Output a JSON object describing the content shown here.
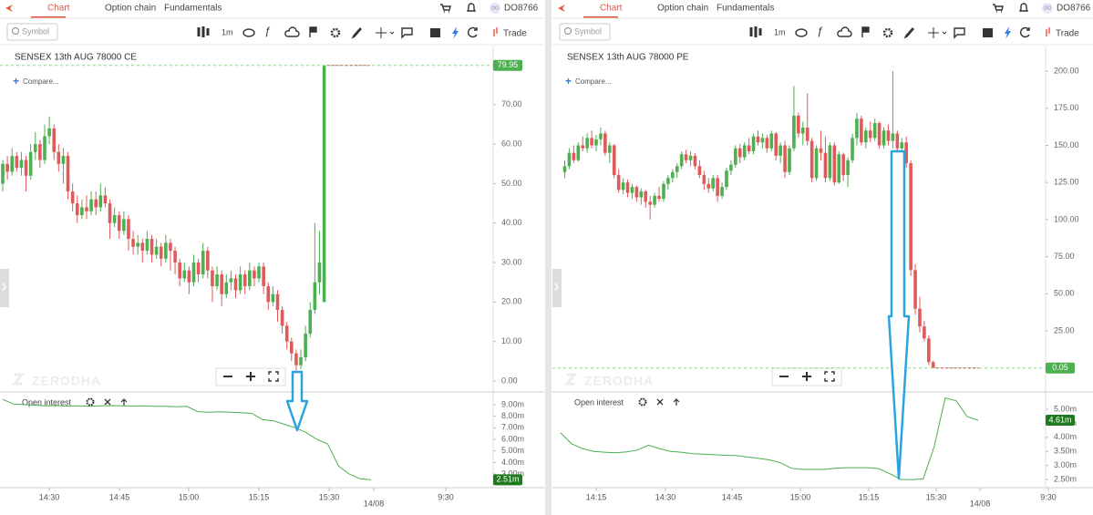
{
  "panels": [
    {
      "tabs": [
        "Chart",
        "Option chain",
        "Fundamentals"
      ],
      "user_initials": "DO",
      "user": "DO8766",
      "search_placeholder": "Symbol",
      "interval": "1m",
      "trade": "Trade",
      "title": "SENSEX 13th AUG 78000 CE",
      "compare": "Compare...",
      "watermark": "ZERODHA",
      "chart_data": {
        "type": "candlestick",
        "up_color": "#4caf50",
        "down_color": "#e05a5a",
        "candles": [
          [
            50,
            56,
            48,
            55
          ],
          [
            55,
            57,
            51,
            53
          ],
          [
            53,
            59,
            52,
            57
          ],
          [
            57,
            58,
            53,
            54
          ],
          [
            54,
            58,
            52,
            56
          ],
          [
            56,
            57,
            48,
            52
          ],
          [
            52,
            60,
            51,
            58
          ],
          [
            58,
            63,
            56,
            60
          ],
          [
            60,
            61,
            54,
            56
          ],
          [
            56,
            65,
            55,
            62
          ],
          [
            62,
            67,
            60,
            64
          ],
          [
            64,
            65,
            56,
            58
          ],
          [
            58,
            60,
            53,
            55
          ],
          [
            55,
            59,
            50,
            57
          ],
          [
            57,
            58,
            46,
            48
          ],
          [
            48,
            50,
            43,
            45
          ],
          [
            45,
            47,
            40,
            42
          ],
          [
            42,
            46,
            41,
            44
          ],
          [
            44,
            47,
            41,
            43
          ],
          [
            43,
            48,
            42,
            46
          ],
          [
            46,
            48,
            42,
            44
          ],
          [
            44,
            50,
            43,
            47
          ],
          [
            47,
            49,
            44,
            45
          ],
          [
            45,
            46,
            36,
            40
          ],
          [
            40,
            44,
            39,
            42
          ],
          [
            42,
            43,
            36,
            38
          ],
          [
            38,
            43,
            37,
            41
          ],
          [
            41,
            42,
            33,
            36
          ],
          [
            36,
            38,
            32,
            34
          ],
          [
            34,
            37,
            32,
            35
          ],
          [
            35,
            36,
            30,
            33
          ],
          [
            33,
            38,
            32,
            36
          ],
          [
            36,
            37,
            30,
            32
          ],
          [
            32,
            36,
            31,
            34
          ],
          [
            34,
            35,
            29,
            31
          ],
          [
            31,
            37,
            30,
            35
          ],
          [
            35,
            36,
            28,
            33
          ],
          [
            33,
            34,
            27,
            30
          ],
          [
            30,
            31,
            24,
            26
          ],
          [
            26,
            30,
            25,
            28
          ],
          [
            28,
            29,
            22,
            25
          ],
          [
            25,
            32,
            24,
            30
          ],
          [
            30,
            31,
            25,
            27
          ],
          [
            27,
            35,
            26,
            33
          ],
          [
            33,
            34,
            26,
            28
          ],
          [
            28,
            29,
            20,
            24
          ],
          [
            24,
            29,
            23,
            27
          ],
          [
            27,
            28,
            19,
            22
          ],
          [
            22,
            27,
            21,
            25
          ],
          [
            25,
            28,
            23,
            26
          ],
          [
            26,
            27,
            21,
            23
          ],
          [
            23,
            29,
            22,
            27
          ],
          [
            27,
            28,
            22,
            24
          ],
          [
            24,
            30,
            23,
            28
          ],
          [
            28,
            29,
            24,
            26
          ],
          [
            26,
            30,
            25,
            29
          ],
          [
            29,
            30,
            22,
            24
          ],
          [
            24,
            25,
            18,
            20
          ],
          [
            20,
            24,
            19,
            22
          ],
          [
            22,
            23,
            15,
            18
          ],
          [
            18,
            19,
            12,
            14
          ],
          [
            14,
            15,
            8,
            10
          ],
          [
            10,
            11,
            5,
            7
          ],
          [
            7,
            8,
            2,
            4
          ],
          [
            4,
            8,
            3,
            6
          ],
          [
            6,
            14,
            5,
            12
          ],
          [
            12,
            20,
            11,
            18
          ],
          [
            18,
            40,
            17,
            25
          ],
          [
            25,
            38,
            22,
            30
          ],
          [
            20,
            80,
            20,
            79.95
          ]
        ],
        "ylim": [
          -2.77,
          84.5
        ],
        "yticks": [
          {
            "value": 0,
            "label": "0.00"
          },
          {
            "value": 10,
            "label": "10.00"
          },
          {
            "value": 20,
            "label": "20.00"
          },
          {
            "value": 30,
            "label": "30.00"
          },
          {
            "value": 40,
            "label": "40.00"
          },
          {
            "value": 50,
            "label": "50.00"
          },
          {
            "value": 60,
            "label": "60.00"
          },
          {
            "value": 70,
            "label": "70.00"
          }
        ],
        "last_price": 79.95
      },
      "oi": {
        "type": "line",
        "label": "Open interest",
        "color": "#4caf50",
        "values": [
          9.45,
          9.05,
          9.0,
          8.95,
          8.9,
          8.92,
          8.88,
          8.9,
          8.85,
          8.9,
          8.92,
          8.9,
          8.88,
          8.9,
          8.85,
          8.86,
          8.82,
          8.85,
          8.4,
          8.35,
          8.38,
          8.35,
          8.3,
          8.25,
          7.7,
          7.6,
          7.3,
          7.0,
          6.6,
          6.0,
          5.6,
          3.7,
          3.0,
          2.6,
          2.51
        ],
        "ylim": [
          1.83,
          9.94
        ],
        "yticks": [
          {
            "value": 9,
            "label": "9.00m"
          },
          {
            "value": 8,
            "label": "8.00m"
          },
          {
            "value": 7,
            "label": "7.00m"
          },
          {
            "value": 6,
            "label": "6.00m"
          },
          {
            "value": 5,
            "label": "5.00m"
          },
          {
            "value": 4,
            "label": "4.00m"
          },
          {
            "value": 3,
            "label": "3.00m"
          }
        ],
        "last": {
          "value": 2.51,
          "label": "2.51m"
        }
      },
      "x_labels": [
        "14:30",
        "14:45",
        "15:00",
        "15:15",
        "15:30",
        "14/08",
        "9:30"
      ]
    },
    {
      "tabs": [
        "Chart",
        "Option chain",
        "Fundamentals"
      ],
      "user_initials": "DO",
      "user": "DO8766",
      "search_placeholder": "Symbol",
      "interval": "1m",
      "trade": "Trade",
      "title": "SENSEX 13th AUG 78000 PE",
      "compare": "Compare...",
      "watermark": "ZERODHA",
      "chart_data": {
        "type": "candlestick",
        "up_color": "#4caf50",
        "down_color": "#e05a5a",
        "candles": [
          [
            132,
            140,
            128,
            136
          ],
          [
            136,
            148,
            134,
            145
          ],
          [
            145,
            150,
            138,
            140
          ],
          [
            140,
            152,
            139,
            150
          ],
          [
            150,
            156,
            146,
            148
          ],
          [
            148,
            158,
            145,
            155
          ],
          [
            155,
            160,
            148,
            150
          ],
          [
            150,
            157,
            146,
            154
          ],
          [
            154,
            162,
            150,
            158
          ],
          [
            158,
            160,
            143,
            145
          ],
          [
            145,
            152,
            138,
            150
          ],
          [
            150,
            151,
            128,
            130
          ],
          [
            130,
            134,
            118,
            120
          ],
          [
            120,
            128,
            117,
            125
          ],
          [
            125,
            127,
            115,
            118
          ],
          [
            118,
            124,
            114,
            122
          ],
          [
            122,
            123,
            112,
            115
          ],
          [
            115,
            121,
            110,
            119
          ],
          [
            119,
            120,
            108,
            112
          ],
          [
            112,
            116,
            100,
            110
          ],
          [
            110,
            118,
            108,
            116
          ],
          [
            116,
            122,
            112,
            114
          ],
          [
            114,
            126,
            112,
            124
          ],
          [
            124,
            130,
            120,
            128
          ],
          [
            128,
            134,
            125,
            132
          ],
          [
            132,
            138,
            128,
            136
          ],
          [
            136,
            146,
            134,
            144
          ],
          [
            144,
            147,
            138,
            140
          ],
          [
            140,
            146,
            136,
            143
          ],
          [
            143,
            145,
            134,
            136
          ],
          [
            136,
            140,
            128,
            130
          ],
          [
            130,
            133,
            120,
            124
          ],
          [
            124,
            128,
            118,
            121
          ],
          [
            121,
            130,
            119,
            128
          ],
          [
            128,
            130,
            112,
            116
          ],
          [
            116,
            125,
            114,
            122
          ],
          [
            122,
            135,
            120,
            133
          ],
          [
            133,
            140,
            130,
            137
          ],
          [
            137,
            150,
            135,
            148
          ],
          [
            148,
            151,
            138,
            142
          ],
          [
            142,
            152,
            140,
            150
          ],
          [
            150,
            155,
            144,
            146
          ],
          [
            146,
            158,
            144,
            156
          ],
          [
            156,
            160,
            150,
            152
          ],
          [
            152,
            158,
            148,
            155
          ],
          [
            155,
            157,
            145,
            148
          ],
          [
            148,
            160,
            146,
            158
          ],
          [
            158,
            159,
            140,
            143
          ],
          [
            143,
            152,
            138,
            150
          ],
          [
            150,
            153,
            128,
            132
          ],
          [
            132,
            150,
            130,
            148
          ],
          [
            148,
            190,
            146,
            170
          ],
          [
            170,
            172,
            155,
            158
          ],
          [
            158,
            166,
            150,
            162
          ],
          [
            162,
            185,
            150,
            153
          ],
          [
            153,
            155,
            125,
            128
          ],
          [
            128,
            150,
            126,
            148
          ],
          [
            148,
            160,
            140,
            145
          ],
          [
            145,
            156,
            125,
            128
          ],
          [
            128,
            152,
            126,
            150
          ],
          [
            150,
            152,
            123,
            125
          ],
          [
            125,
            146,
            124,
            144
          ],
          [
            144,
            145,
            126,
            130
          ],
          [
            130,
            142,
            122,
            140
          ],
          [
            140,
            158,
            138,
            155
          ],
          [
            155,
            172,
            150,
            168
          ],
          [
            168,
            170,
            150,
            152
          ],
          [
            152,
            162,
            148,
            160
          ],
          [
            160,
            166,
            152,
            155
          ],
          [
            155,
            168,
            153,
            165
          ],
          [
            165,
            166,
            148,
            150
          ],
          [
            150,
            162,
            148,
            160
          ],
          [
            160,
            164,
            150,
            153
          ],
          [
            153,
            200,
            148,
            158
          ],
          [
            158,
            160,
            145,
            148
          ],
          [
            148,
            155,
            146,
            152
          ],
          [
            152,
            156,
            135,
            138
          ],
          [
            138,
            140,
            62,
            66
          ],
          [
            66,
            70,
            36,
            40
          ],
          [
            40,
            48,
            24,
            28
          ],
          [
            28,
            32,
            18,
            20
          ],
          [
            20,
            22,
            2,
            4
          ],
          [
            4,
            5,
            0.05,
            0.05
          ]
        ],
        "ylim": [
          -16.1,
          216
        ],
        "yticks": [
          {
            "value": 25,
            "label": "25.00"
          },
          {
            "value": 50,
            "label": "50.00"
          },
          {
            "value": 75,
            "label": "75.00"
          },
          {
            "value": 100,
            "label": "100.00"
          },
          {
            "value": 125,
            "label": "125.00"
          },
          {
            "value": 150,
            "label": "150.00"
          },
          {
            "value": 175,
            "label": "175.00"
          },
          {
            "value": 200,
            "label": "200.00"
          }
        ],
        "last_price": 0.05
      },
      "oi": {
        "type": "line",
        "label": "Open interest",
        "color": "#4caf50",
        "values": [
          4.16,
          3.77,
          3.6,
          3.5,
          3.47,
          3.45,
          3.48,
          3.55,
          3.72,
          3.6,
          3.5,
          3.47,
          3.42,
          3.4,
          3.38,
          3.36,
          3.35,
          3.3,
          3.25,
          3.2,
          3.1,
          2.9,
          2.86,
          2.86,
          2.86,
          2.9,
          2.92,
          2.92,
          2.92,
          2.88,
          2.7,
          2.5,
          2.5,
          2.52,
          3.67,
          5.4,
          5.3,
          4.74,
          4.61
        ],
        "ylim": [
          2.21,
          5.55
        ],
        "yticks": [
          {
            "value": 5,
            "label": "5.00m"
          },
          {
            "value": 4.5,
            "label": "4.50m"
          },
          {
            "value": 4,
            "label": "4.00m"
          },
          {
            "value": 3.5,
            "label": "3.50m"
          },
          {
            "value": 3,
            "label": "3.00m"
          },
          {
            "value": 2.5,
            "label": "2.50m"
          }
        ],
        "last": {
          "value": 4.61,
          "label": "4.61m"
        }
      },
      "x_labels": [
        "14:15",
        "14:30",
        "14:45",
        "15:00",
        "15:15",
        "15:30",
        "14/08",
        "9:30"
      ]
    }
  ]
}
